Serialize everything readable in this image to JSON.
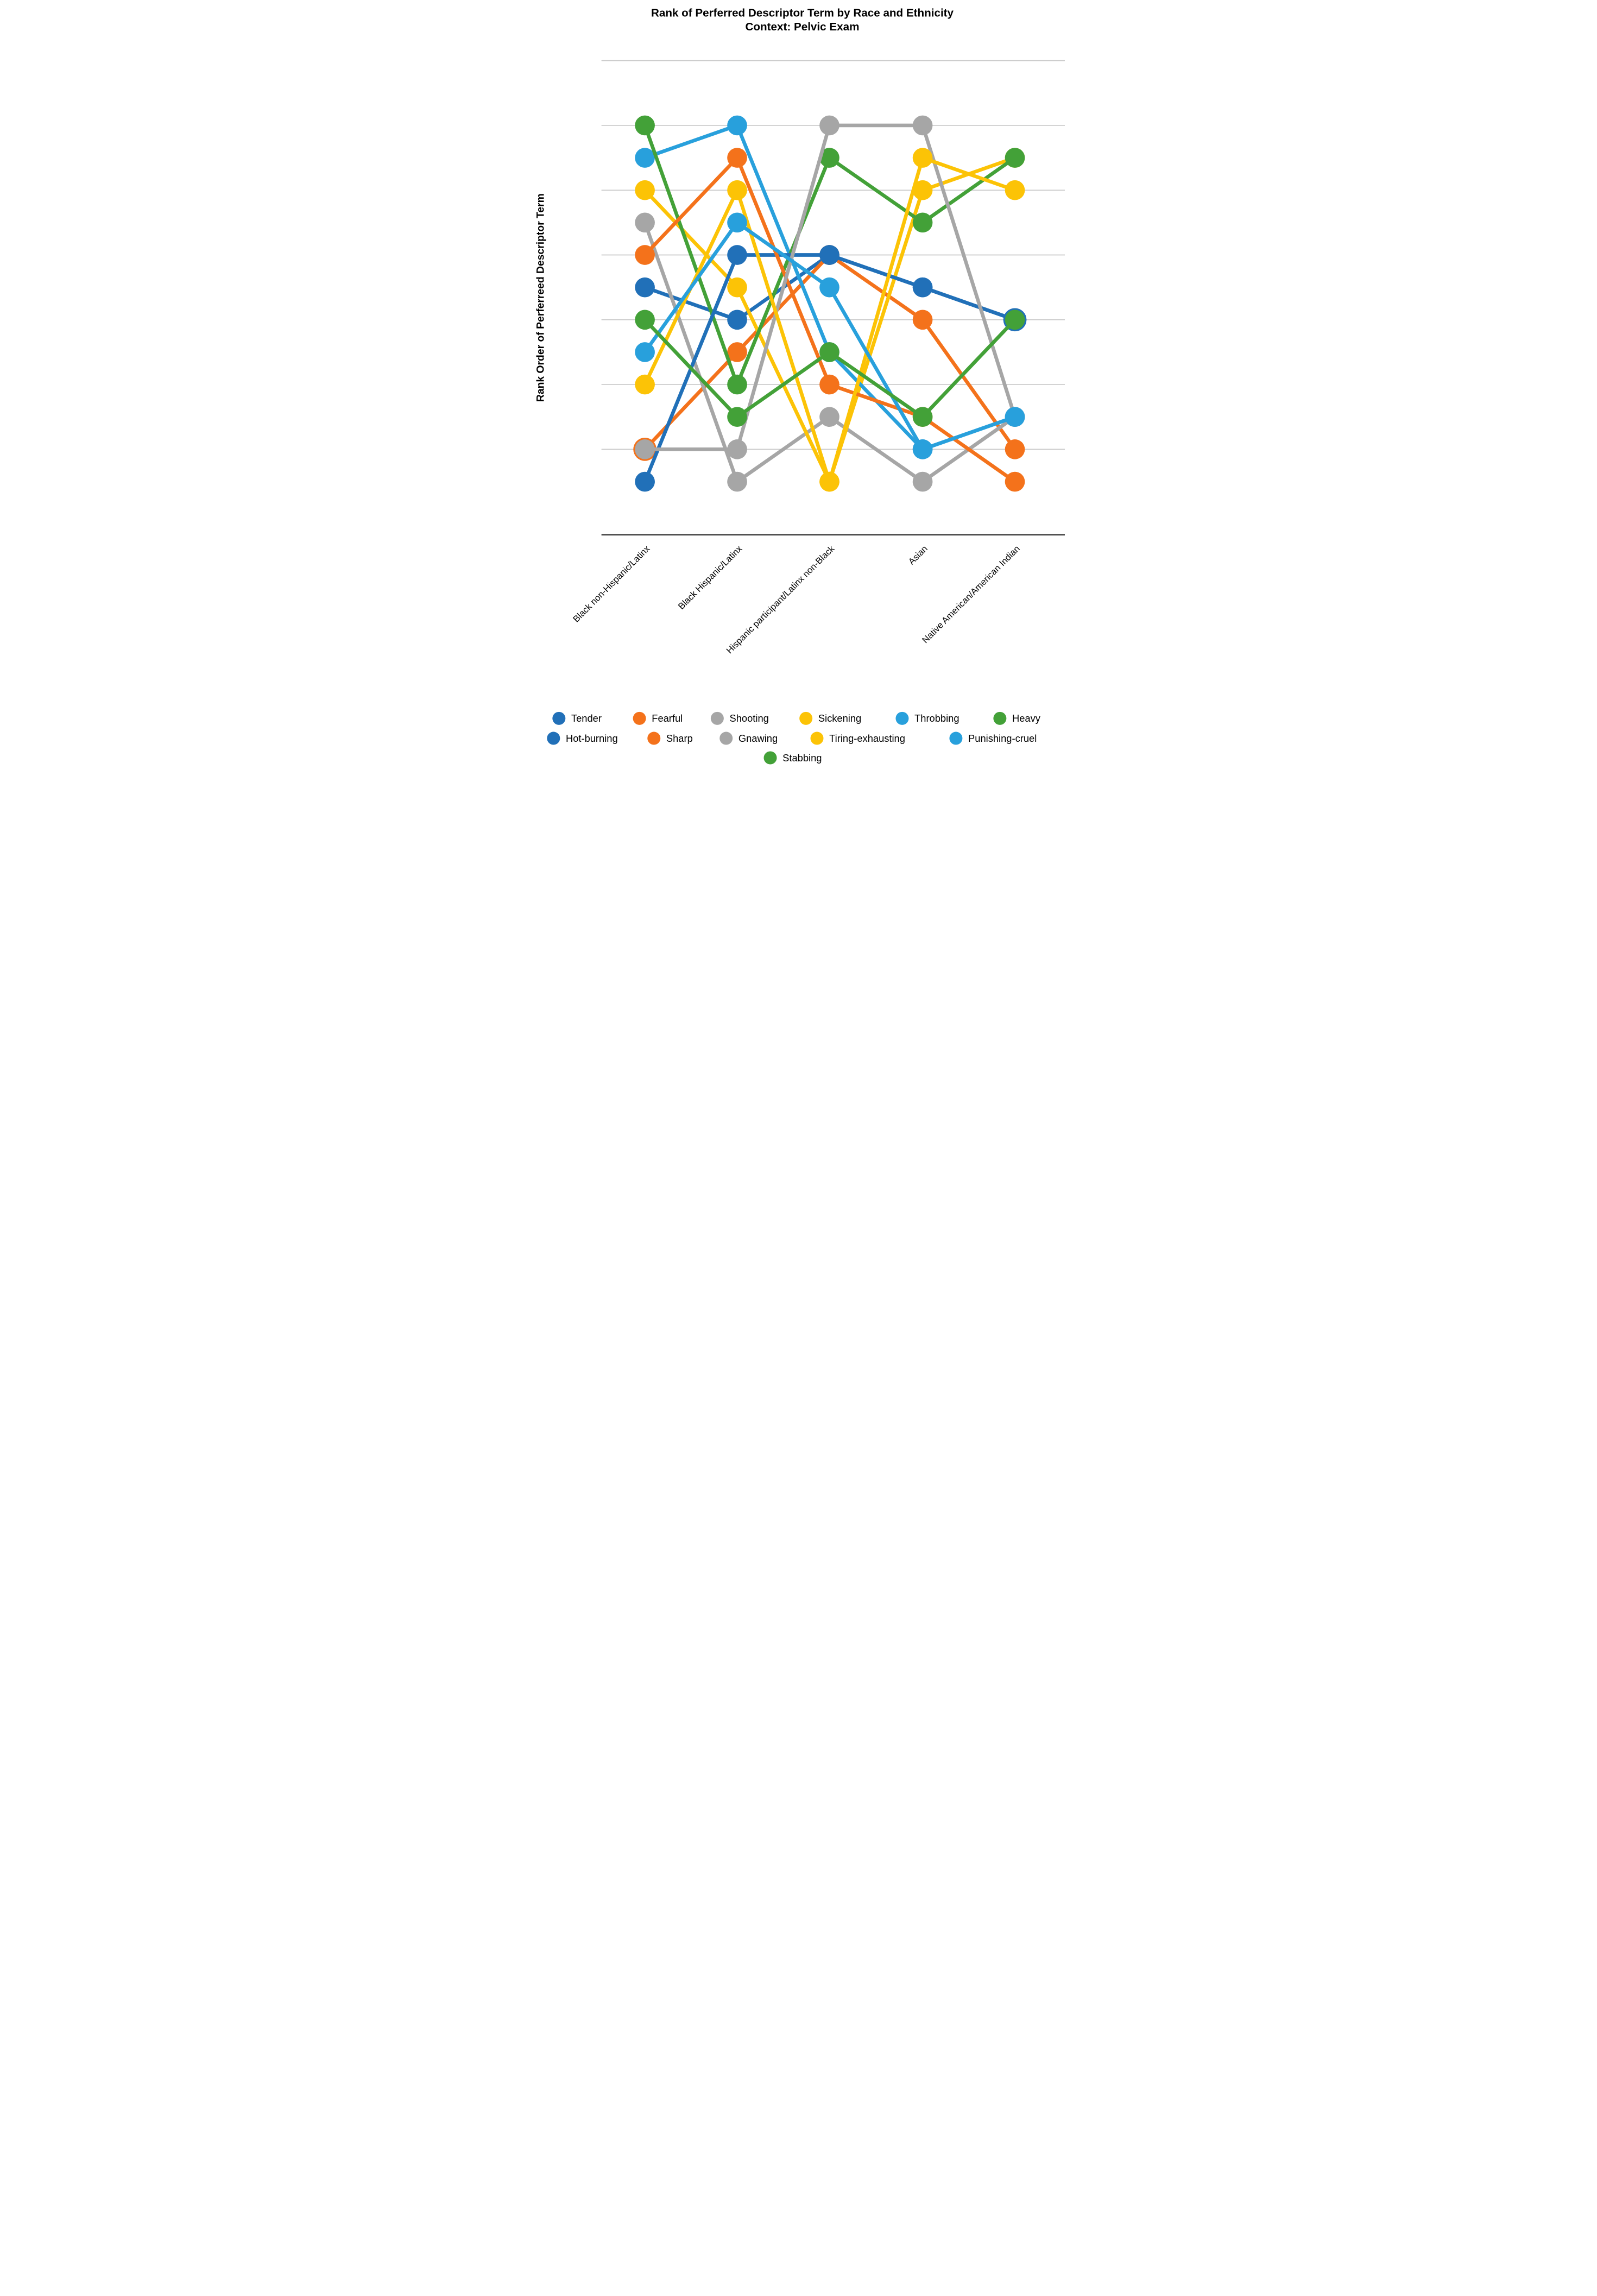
{
  "chart_data": {
    "type": "line",
    "variant": "bump-rank-chart",
    "title": "Rank of Perferred Descriptor Term by Race and Ethnicity",
    "subtitle": "Context: Pelvic Exam",
    "ylabel": "Rank Order of Perferreed Descriptor Term",
    "xlabel": "",
    "y_axis": {
      "note": "rank order, 1 = top (most preferred) to 12 = bottom, no numeric tick labels shown, gridlines at every other rank",
      "min_rank": 1,
      "max_rank": 12,
      "inverted": true,
      "grid": true,
      "tick_labels_shown": false
    },
    "categories": [
      "Black non-Hispanic/Latinx",
      "Black Hispanic/Latinx",
      "Hispanic participant/Latinx non-Black",
      "Asian",
      "Native American/American Indian"
    ],
    "series": [
      {
        "name": "Tender",
        "color": "blue",
        "ranks": [
          6,
          7,
          5,
          6,
          7
        ]
      },
      {
        "name": "Fearful",
        "color": "orange",
        "ranks": [
          11,
          8,
          5,
          7,
          11
        ]
      },
      {
        "name": "Shooting",
        "color": "gray",
        "ranks": [
          4,
          12,
          10,
          12,
          10
        ]
      },
      {
        "name": "Sickening",
        "color": "yellow",
        "ranks": [
          3,
          6,
          12,
          3,
          2
        ]
      },
      {
        "name": "Throbbing",
        "color": "lightblue",
        "ranks": [
          2,
          1,
          8,
          11,
          10
        ]
      },
      {
        "name": "Heavy",
        "color": "green",
        "ranks": [
          1,
          9,
          2,
          4,
          2
        ]
      },
      {
        "name": "Hot-burning",
        "color": "blue",
        "ranks": [
          12,
          5,
          5,
          6,
          7
        ]
      },
      {
        "name": "Sharp",
        "color": "orange",
        "ranks": [
          5,
          2,
          9,
          10,
          12
        ]
      },
      {
        "name": "Gnawing",
        "color": "gray",
        "ranks": [
          11,
          11,
          1,
          1,
          10
        ]
      },
      {
        "name": "Tiring-exhausting",
        "color": "yellow",
        "ranks": [
          9,
          3,
          12,
          2,
          3
        ]
      },
      {
        "name": "Punishing-cruel",
        "color": "lightblue",
        "ranks": [
          8,
          4,
          6,
          11,
          10
        ]
      },
      {
        "name": "Stabbing",
        "color": "green",
        "ranks": [
          7,
          10,
          8,
          10,
          7
        ]
      }
    ],
    "colors": {
      "blue": "#2170b8",
      "orange": "#f4721b",
      "gray": "#a6a6a6",
      "yellow": "#fcc306",
      "lightblue": "#28a0dc",
      "green": "#43a138",
      "gridline": "#c9c9c9",
      "axis": "#4d4d4d",
      "text": "#000000"
    },
    "halo_points": [
      {
        "series_index": 1,
        "cat_index": 0
      },
      {
        "series_index": 0,
        "cat_index": 4
      },
      {
        "series_index": 6,
        "cat_index": 4
      }
    ],
    "legend_position": "bottom",
    "legend_rows": [
      {
        "y": 3970,
        "items": [
          {
            "x": 145,
            "label": "Tender",
            "color": "blue"
          },
          {
            "x": 590,
            "label": "Fearful",
            "color": "orange"
          },
          {
            "x": 1020,
            "label": "Shooting",
            "color": "gray"
          },
          {
            "x": 1510,
            "label": "Sickening",
            "color": "yellow"
          },
          {
            "x": 2042,
            "label": "Throbbing",
            "color": "lightblue"
          },
          {
            "x": 2582,
            "label": "Heavy",
            "color": "green"
          }
        ]
      },
      {
        "y": 4080,
        "items": [
          {
            "x": 115,
            "label": "Hot-burning",
            "color": "blue"
          },
          {
            "x": 670,
            "label": "Sharp",
            "color": "orange"
          },
          {
            "x": 1069,
            "label": "Gnawing",
            "color": "gray"
          },
          {
            "x": 1571,
            "label": "Tiring-exhausting",
            "color": "yellow"
          },
          {
            "x": 2339,
            "label": "Punishing-cruel",
            "color": "lightblue"
          }
        ]
      },
      {
        "y": 4188,
        "items": [
          {
            "x": 1313,
            "label": "Stabbing",
            "color": "green"
          }
        ]
      }
    ]
  }
}
